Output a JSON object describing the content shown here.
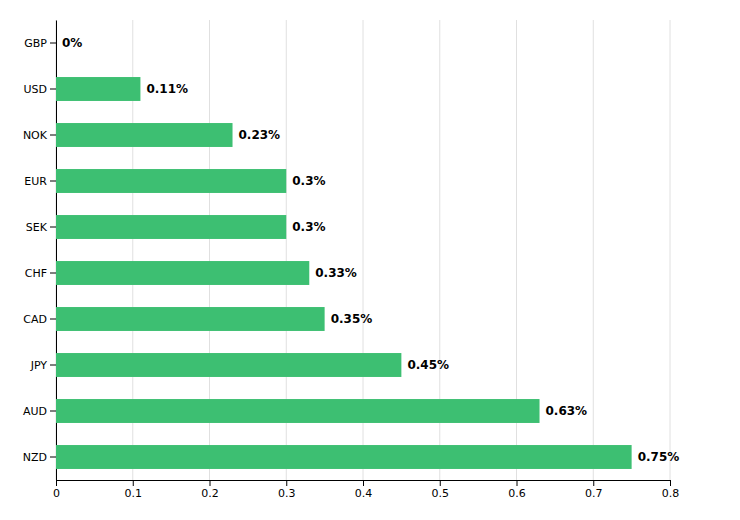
{
  "chart_data": {
    "type": "bar",
    "orientation": "horizontal",
    "categories": [
      "GBP",
      "USD",
      "NOK",
      "EUR",
      "SEK",
      "CHF",
      "CAD",
      "JPY",
      "AUD",
      "NZD"
    ],
    "values": [
      0.0,
      0.11,
      0.23,
      0.3,
      0.3,
      0.33,
      0.35,
      0.45,
      0.63,
      0.75
    ],
    "value_labels": [
      "0%",
      "0.11%",
      "0.23%",
      "0.3%",
      "0.3%",
      "0.33%",
      "0.35%",
      "0.45%",
      "0.63%",
      "0.75%"
    ],
    "color": "#3dbf72",
    "xlim": [
      0,
      0.8
    ],
    "xticks": [
      0,
      0.1,
      0.2,
      0.3,
      0.4,
      0.5,
      0.6,
      0.7,
      0.8
    ],
    "grid": true,
    "data_labels": true
  }
}
